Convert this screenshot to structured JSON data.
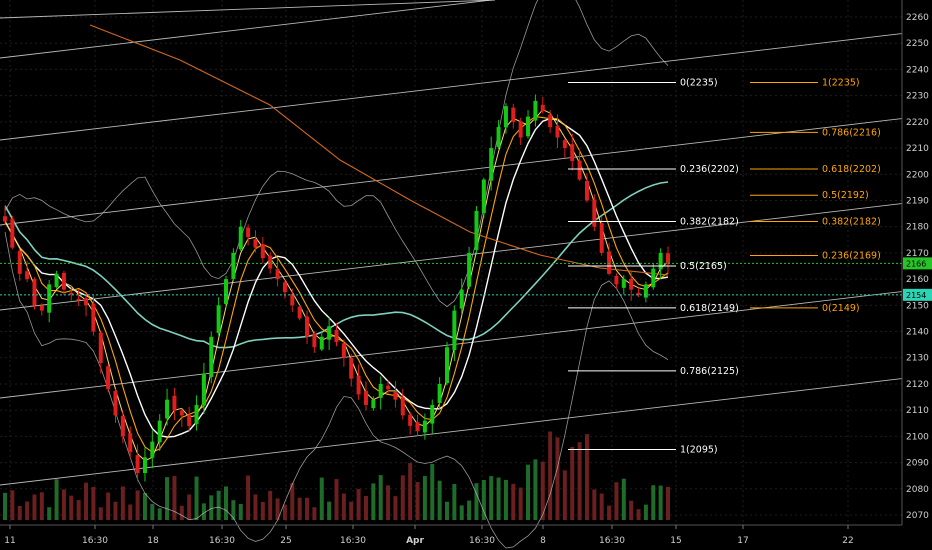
{
  "chart_data": {
    "type": "candlestick",
    "grid": true,
    "background": "#000000",
    "colors": {
      "up": "#14c814",
      "down": "#e01e1e",
      "vol_up": "#1f6b2a",
      "vol_down": "#6b1f1f",
      "channel": "#d9d9d9",
      "ma_long": "#d2691e",
      "ma_white": "#ffffff",
      "ma_orange": "#ffa500",
      "ma_yellow": "#ffd966",
      "ma_teal": "#7fd1c0",
      "band": "#bbbbbb",
      "fib_white": "#ffffff",
      "fib_orange": "#ffa500",
      "price_line_green": "#27c427",
      "price_line_teal": "#2ad5b5"
    },
    "y_axis": {
      "range": [
        2066,
        2266
      ],
      "ticks": [
        "2070",
        "2080",
        "2090",
        "2100",
        "2110",
        "2120",
        "2130",
        "2140",
        "2150",
        "2160",
        "2170",
        "2180",
        "2190",
        "2200",
        "2210",
        "2220",
        "2230",
        "2240",
        "2250",
        "2260"
      ]
    },
    "x_axis": {
      "ticks": [
        "11",
        "16:30",
        "18",
        "16:30",
        "25",
        "16:30",
        "Apr",
        "16:30",
        "8",
        "16:30",
        "15",
        "17",
        "22"
      ]
    },
    "price_badges": [
      {
        "label": "2166",
        "value": 2166,
        "color": "#27c427"
      },
      {
        "label": "2154",
        "value": 2154,
        "color": "#2ad5b5"
      }
    ],
    "fib_white": [
      {
        "label": "0(2235)",
        "value": 2235
      },
      {
        "label": "0.236(2202)",
        "value": 2202
      },
      {
        "label": "0.382(2182)",
        "value": 2182
      },
      {
        "label": "0.5(2165)",
        "value": 2165
      },
      {
        "label": "0.618(2149)",
        "value": 2149
      },
      {
        "label": "0.786(2125)",
        "value": 2125
      },
      {
        "label": "1(2095)",
        "value": 2095
      }
    ],
    "fib_orange": [
      {
        "label": "1(2235)",
        "value": 2235
      },
      {
        "label": "0.786(2216)",
        "value": 2216
      },
      {
        "label": "0.618(2202)",
        "value": 2202
      },
      {
        "label": "0.5(2192)",
        "value": 2192
      },
      {
        "label": "0.382(2182)",
        "value": 2182
      },
      {
        "label": "0.236(2169)",
        "value": 2169
      },
      {
        "label": "0(2149)",
        "value": 2149
      }
    ],
    "close_path": [
      2182,
      2172,
      2162,
      2160,
      2150,
      2148,
      2158,
      2162,
      2156,
      2154,
      2152,
      2150,
      2140,
      2128,
      2118,
      2108,
      2100,
      2094,
      2086,
      2092,
      2098,
      2106,
      2114,
      2110,
      2108,
      2104,
      2112,
      2124,
      2138,
      2150,
      2160,
      2170,
      2180,
      2176,
      2172,
      2168,
      2164,
      2160,
      2155,
      2150,
      2145,
      2138,
      2134,
      2138,
      2142,
      2136,
      2130,
      2122,
      2116,
      2112,
      2114,
      2120,
      2118,
      2114,
      2108,
      2104,
      2102,
      2106,
      2112,
      2120,
      2134,
      2148,
      2156,
      2170,
      2186,
      2198,
      2210,
      2218,
      2226,
      2220,
      2214,
      2222,
      2228,
      2224,
      2218,
      2214,
      2210,
      2205,
      2198,
      2190,
      2180,
      2170,
      2162,
      2158,
      2160,
      2156,
      2154,
      2158,
      2164,
      2170,
      2166
    ]
  }
}
